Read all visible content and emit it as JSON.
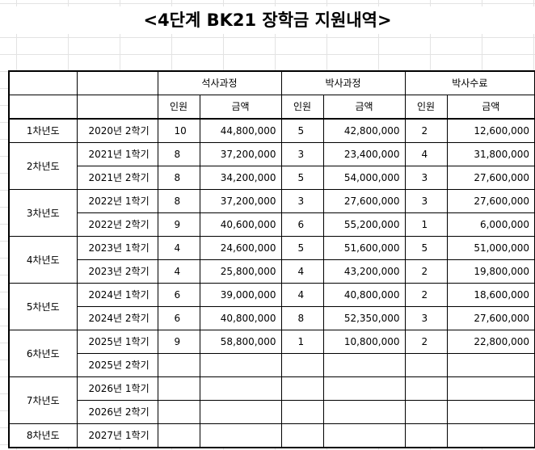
{
  "title": "<4단계 BK21 장학금 지원내역>",
  "header": {
    "groups": [
      "석사과정",
      "박사과정",
      "박사수료"
    ],
    "count_label": "인원",
    "amount_label": "금액"
  },
  "rows": [
    {
      "year": "1차년도",
      "term": "2020년 2학기",
      "m_n": "10",
      "m_amt": "44,800,000",
      "p_n": "5",
      "p_amt": "42,800,000",
      "c_n": "2",
      "c_amt": "12,600,000"
    },
    {
      "year": "2차년도",
      "term": "2021년 1학기",
      "m_n": "8",
      "m_amt": "37,200,000",
      "p_n": "3",
      "p_amt": "23,400,000",
      "c_n": "4",
      "c_amt": "31,800,000"
    },
    {
      "year": "",
      "term": "2021년 2학기",
      "m_n": "8",
      "m_amt": "34,200,000",
      "p_n": "5",
      "p_amt": "54,000,000",
      "c_n": "3",
      "c_amt": "27,600,000"
    },
    {
      "year": "3차년도",
      "term": "2022년 1학기",
      "m_n": "8",
      "m_amt": "37,200,000",
      "p_n": "3",
      "p_amt": "27,600,000",
      "c_n": "3",
      "c_amt": "27,600,000"
    },
    {
      "year": "",
      "term": "2022년 2학기",
      "m_n": "9",
      "m_amt": "40,600,000",
      "p_n": "6",
      "p_amt": "55,200,000",
      "c_n": "1",
      "c_amt": "6,000,000"
    },
    {
      "year": "4차년도",
      "term": "2023년 1학기",
      "m_n": "4",
      "m_amt": "24,600,000",
      "p_n": "5",
      "p_amt": "51,600,000",
      "c_n": "5",
      "c_amt": "51,000,000"
    },
    {
      "year": "",
      "term": "2023년 2학기",
      "m_n": "4",
      "m_amt": "25,800,000",
      "p_n": "4",
      "p_amt": "43,200,000",
      "c_n": "2",
      "c_amt": "19,800,000"
    },
    {
      "year": "5차년도",
      "term": "2024년 1학기",
      "m_n": "6",
      "m_amt": "39,000,000",
      "p_n": "4",
      "p_amt": "40,800,000",
      "c_n": "2",
      "c_amt": "18,600,000"
    },
    {
      "year": "",
      "term": "2024년 2학기",
      "m_n": "6",
      "m_amt": "40,800,000",
      "p_n": "8",
      "p_amt": "52,350,000",
      "c_n": "3",
      "c_amt": "27,600,000"
    },
    {
      "year": "6차년도",
      "term": "2025년 1학기",
      "m_n": "9",
      "m_amt": "58,800,000",
      "p_n": "1",
      "p_amt": "10,800,000",
      "c_n": "2",
      "c_amt": "22,800,000"
    },
    {
      "year": "",
      "term": "2025년 2학기",
      "m_n": "",
      "m_amt": "",
      "p_n": "",
      "p_amt": "",
      "c_n": "",
      "c_amt": ""
    },
    {
      "year": "7차년도",
      "term": "2026년 1학기",
      "m_n": "",
      "m_amt": "",
      "p_n": "",
      "p_amt": "",
      "c_n": "",
      "c_amt": ""
    },
    {
      "year": "",
      "term": "2026년 2학기",
      "m_n": "",
      "m_amt": "",
      "p_n": "",
      "p_amt": "",
      "c_n": "",
      "c_amt": ""
    },
    {
      "year": "8차년도",
      "term": "2027년 1학기",
      "m_n": "",
      "m_amt": "",
      "p_n": "",
      "p_amt": "",
      "c_n": "",
      "c_amt": ""
    }
  ]
}
